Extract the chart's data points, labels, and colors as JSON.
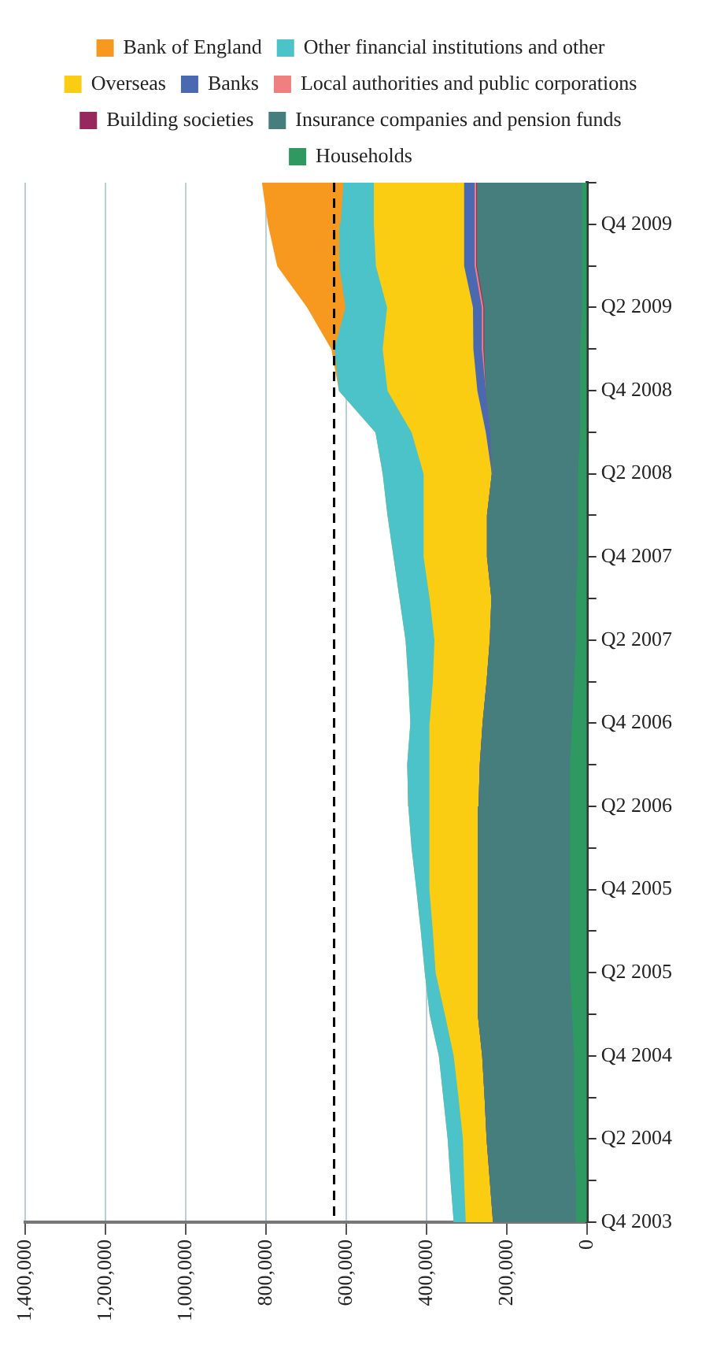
{
  "chart_data": {
    "type": "area",
    "orientation": "horizontal",
    "stacked": true,
    "categories": [
      null,
      "Q4 2009",
      null,
      "Q2 2009",
      null,
      "Q4 2008",
      null,
      "Q2 2008",
      null,
      "Q4 2007",
      null,
      "Q2 2007",
      null,
      "Q4 2006",
      null,
      "Q2 2006",
      null,
      "Q4 2005",
      null,
      "Q2 2005",
      null,
      "Q4 2004",
      null,
      "Q2 2004",
      null,
      "Q4 2003"
    ],
    "series": [
      {
        "name": "Households",
        "color": "#2e9a62",
        "values": [
          10000,
          10000,
          10000,
          10000,
          15000,
          15000,
          15000,
          20000,
          20000,
          20000,
          25000,
          25000,
          30000,
          35000,
          40000,
          40000,
          40000,
          40000,
          40000,
          40000,
          35000,
          30000,
          30000,
          30000,
          25000,
          25000
        ]
      },
      {
        "name": "Insurance companies and pension funds",
        "color": "#467e7e",
        "values": [
          262000,
          262000,
          262000,
          244000,
          239000,
          235000,
          224000,
          215000,
          227000,
          227000,
          211000,
          215000,
          218000,
          223000,
          225000,
          228000,
          230000,
          230000,
          230000,
          230000,
          235000,
          229000,
          223000,
          218000,
          215000,
          207000
        ]
      },
      {
        "name": "Building societies",
        "color": "#96285e",
        "values": [
          2000,
          2000,
          2000,
          2000,
          2000,
          0,
          0,
          0,
          0,
          0,
          0,
          0,
          0,
          0,
          0,
          0,
          0,
          0,
          0,
          0,
          0,
          0,
          0,
          0,
          0,
          0
        ]
      },
      {
        "name": "Local authorities and public corporations",
        "color": "#f08080",
        "values": [
          4000,
          4000,
          4000,
          4000,
          4000,
          0,
          0,
          0,
          0,
          0,
          0,
          0,
          0,
          0,
          0,
          0,
          0,
          0,
          0,
          0,
          0,
          0,
          0,
          0,
          0,
          0
        ]
      },
      {
        "name": "Banks",
        "color": "#4a69b0",
        "values": [
          26000,
          26000,
          26000,
          22000,
          21000,
          21000,
          11000,
          0,
          0,
          0,
          0,
          0,
          0,
          0,
          0,
          0,
          0,
          0,
          0,
          0,
          0,
          0,
          0,
          0,
          0,
          0
        ]
      },
      {
        "name": "Overseas",
        "color": "#fbcd12",
        "values": [
          224000,
          225000,
          220000,
          214000,
          226000,
          224000,
          185000,
          170000,
          158000,
          158000,
          154000,
          138000,
          134000,
          132000,
          126000,
          123000,
          120000,
          120000,
          112000,
          105000,
          82000,
          71000,
          65000,
          59000,
          64000,
          68000
        ]
      },
      {
        "name": "Other financial institutions and other",
        "color": "#4bc3c8",
        "values": [
          77000,
          83000,
          91000,
          104000,
          120000,
          121000,
          90000,
          102000,
          90000,
          75000,
          75000,
          72000,
          61000,
          48000,
          55000,
          52000,
          45000,
          33000,
          30000,
          27000,
          38000,
          37000,
          38000,
          38000,
          34000,
          30000
        ]
      },
      {
        "name": "Bank of England",
        "color": "#f7991f",
        "values": [
          203000,
          181000,
          155000,
          95000,
          8000,
          0,
          0,
          0,
          0,
          0,
          0,
          0,
          0,
          0,
          0,
          0,
          0,
          0,
          0,
          0,
          0,
          0,
          0,
          0,
          0,
          0
        ]
      }
    ],
    "xlim": [
      1400000,
      0
    ],
    "xticks": [
      0,
      {
        "value": 200000,
        "label": "200,000"
      },
      {
        "value": 400000,
        "label": "400,000"
      },
      {
        "value": 600000,
        "label": "600,000"
      },
      {
        "value": 800000,
        "label": "800,000"
      },
      {
        "value": 1000000,
        "label": "1,000,000"
      },
      {
        "value": 1200000,
        "label": "1,200,000"
      },
      {
        "value": 1400000,
        "label": "1,400,000"
      }
    ],
    "grid": "x",
    "legend": "top",
    "ref_lines": [
      {
        "axis": "x",
        "value": 630000,
        "color": "#000000",
        "line_style": "dashed"
      }
    ]
  }
}
